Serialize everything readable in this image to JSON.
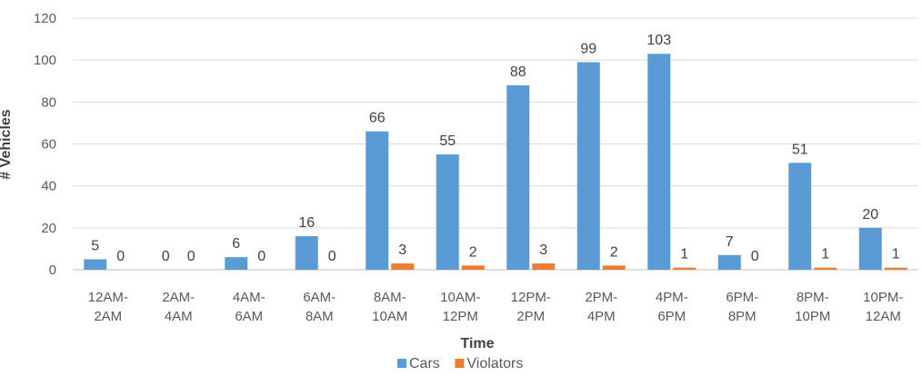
{
  "chart_data": {
    "type": "bar",
    "xlabel": "Time",
    "ylabel": "# Vehicles",
    "ylim": [
      0,
      120
    ],
    "yticks": [
      0,
      20,
      40,
      60,
      80,
      100,
      120
    ],
    "grid": true,
    "legend_position": "bottom",
    "categories": [
      [
        "12AM-",
        "2AM"
      ],
      [
        "2AM-",
        "4AM"
      ],
      [
        "4AM-",
        "6AM"
      ],
      [
        "6AM-",
        "8AM"
      ],
      [
        "8AM-",
        "10AM"
      ],
      [
        "10AM-",
        "12PM"
      ],
      [
        "12PM-",
        "2PM"
      ],
      [
        "2PM-",
        "4PM"
      ],
      [
        "4PM-",
        "6PM"
      ],
      [
        "6PM-",
        "8PM"
      ],
      [
        "8PM-",
        "10PM"
      ],
      [
        "10PM-",
        "12AM"
      ]
    ],
    "series": [
      {
        "name": "Cars",
        "color": "#5B9BD5",
        "values": [
          5,
          0,
          6,
          16,
          66,
          55,
          88,
          99,
          103,
          7,
          51,
          20
        ]
      },
      {
        "name": "Violators",
        "color": "#ED7D31",
        "values": [
          0,
          0,
          0,
          0,
          3,
          2,
          3,
          2,
          1,
          0,
          1,
          1
        ]
      }
    ]
  }
}
